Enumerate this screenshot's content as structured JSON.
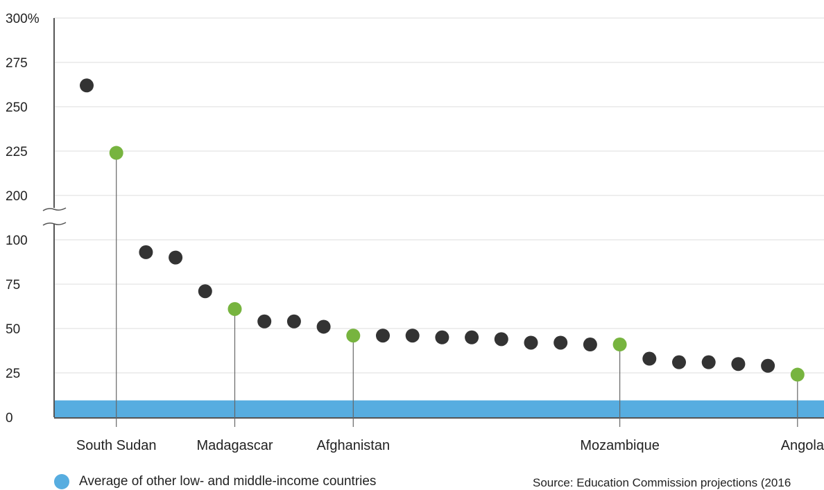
{
  "chart_data": {
    "type": "scatter",
    "ylim": [
      0,
      300
    ],
    "axis_break": [
      100,
      200
    ],
    "y_ticks": [
      "300%",
      "275",
      "250",
      "225",
      "200",
      "100",
      "75",
      "50",
      "25",
      "0"
    ],
    "y_tick_values": [
      300,
      275,
      250,
      225,
      200,
      100,
      75,
      50,
      25,
      0
    ],
    "grid": true,
    "points": [
      262,
      224,
      93,
      90,
      71,
      61,
      54,
      54,
      51,
      46,
      46,
      46,
      45,
      45,
      44,
      42,
      42,
      41,
      41,
      33,
      31,
      31,
      30,
      29,
      24
    ],
    "highlighted": [
      {
        "index": 1,
        "label": "South Sudan",
        "value": 224
      },
      {
        "index": 5,
        "label": "Madagascar",
        "value": 61
      },
      {
        "index": 9,
        "label": "Afghanistan",
        "value": 46
      },
      {
        "index": 18,
        "label": "Mozambique",
        "value": 41
      },
      {
        "index": 24,
        "label": "Angola",
        "value": 24
      }
    ],
    "average": {
      "label": "Average of other low- and middle-income countries",
      "value": 9.5
    },
    "colors": {
      "point": "#333333",
      "highlight": "#77b43f",
      "average": "#57ade0",
      "grid": "#dddddd",
      "axis": "#555555"
    }
  },
  "legend": {
    "label": "Average of other low- and middle-income countries"
  },
  "source": "Source: Education Commission projections (2016"
}
